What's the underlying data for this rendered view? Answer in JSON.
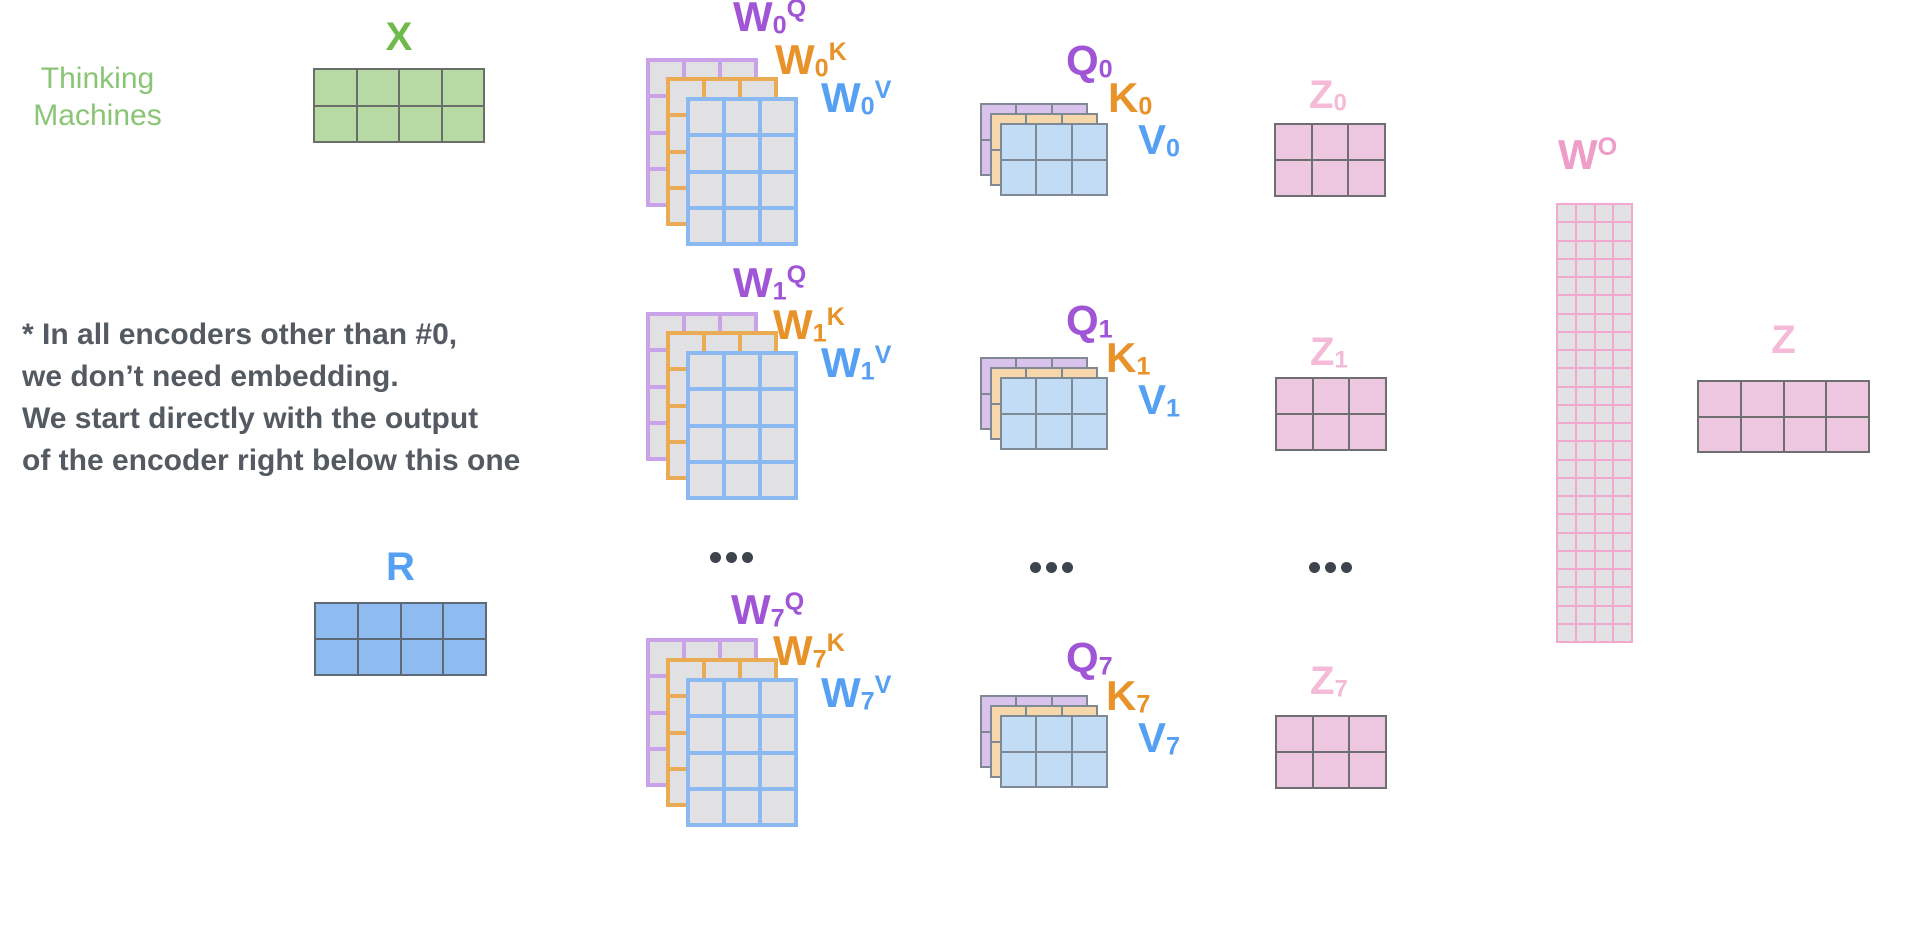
{
  "brand": {
    "line1": "Thinking",
    "line2": "Machines"
  },
  "note": {
    "lines": [
      "* In all encoders other than #0,",
      "we don’t need embedding.",
      "We start directly with the output",
      "of the encoder right below this one"
    ]
  },
  "symbols": {
    "W": "W",
    "Q": "Q",
    "K": "K",
    "V": "V",
    "Z": "Z",
    "O": "O",
    "X": "X",
    "R": "R"
  },
  "heads": [
    {
      "id": "0"
    },
    {
      "id": "1"
    },
    {
      "id": "7"
    }
  ],
  "labels": {
    "ellipsis": "..."
  },
  "colors": {
    "label_purple": "#a055d6",
    "label_orange": "#e8932a",
    "label_blue": "#55a0f2",
    "label_pink_light": "#f4bad8",
    "label_pink": "#ee9cc8",
    "label_green": "#6eba4a",
    "brand_green": "#8ac576",
    "note_gray": "#545a62",
    "ellipsis_gray": "#3e444e"
  },
  "matrices": {
    "x": {
      "rows": 2,
      "cols": 4,
      "fill": "#b7d9a4",
      "stroke": "#6a6e68",
      "bw": 2
    },
    "r": {
      "rows": 2,
      "cols": 4,
      "fill": "#8fbcf0",
      "stroke": "#5e6a76",
      "bw": 2
    },
    "z_head": {
      "rows": 2,
      "cols": 3,
      "fill": "#edc7df",
      "stroke": "#6f6f71",
      "bw": 2
    },
    "z_final": {
      "rows": 2,
      "cols": 4,
      "fill": "#edc7df",
      "stroke": "#6f6f71",
      "bw": 2
    },
    "wo": {
      "rows": 24,
      "cols": 4,
      "fill": "#e2e2e4",
      "stroke": "#f2a8cf",
      "bw": 2
    },
    "w_stack": {
      "rows": 4,
      "cols": 3,
      "fill": "#e1e1e3",
      "bw": 4,
      "strokes": {
        "q": "#c9a2e8",
        "k": "#e9ab54",
        "v": "#8ab9f1"
      }
    },
    "qkv_stack": {
      "rows": 2,
      "cols": 3,
      "stroke": "#7f8994",
      "bw": 2,
      "fills": {
        "q": "#d9c2ec",
        "k": "#f5d7ab",
        "v": "#c3dcf5"
      }
    }
  }
}
